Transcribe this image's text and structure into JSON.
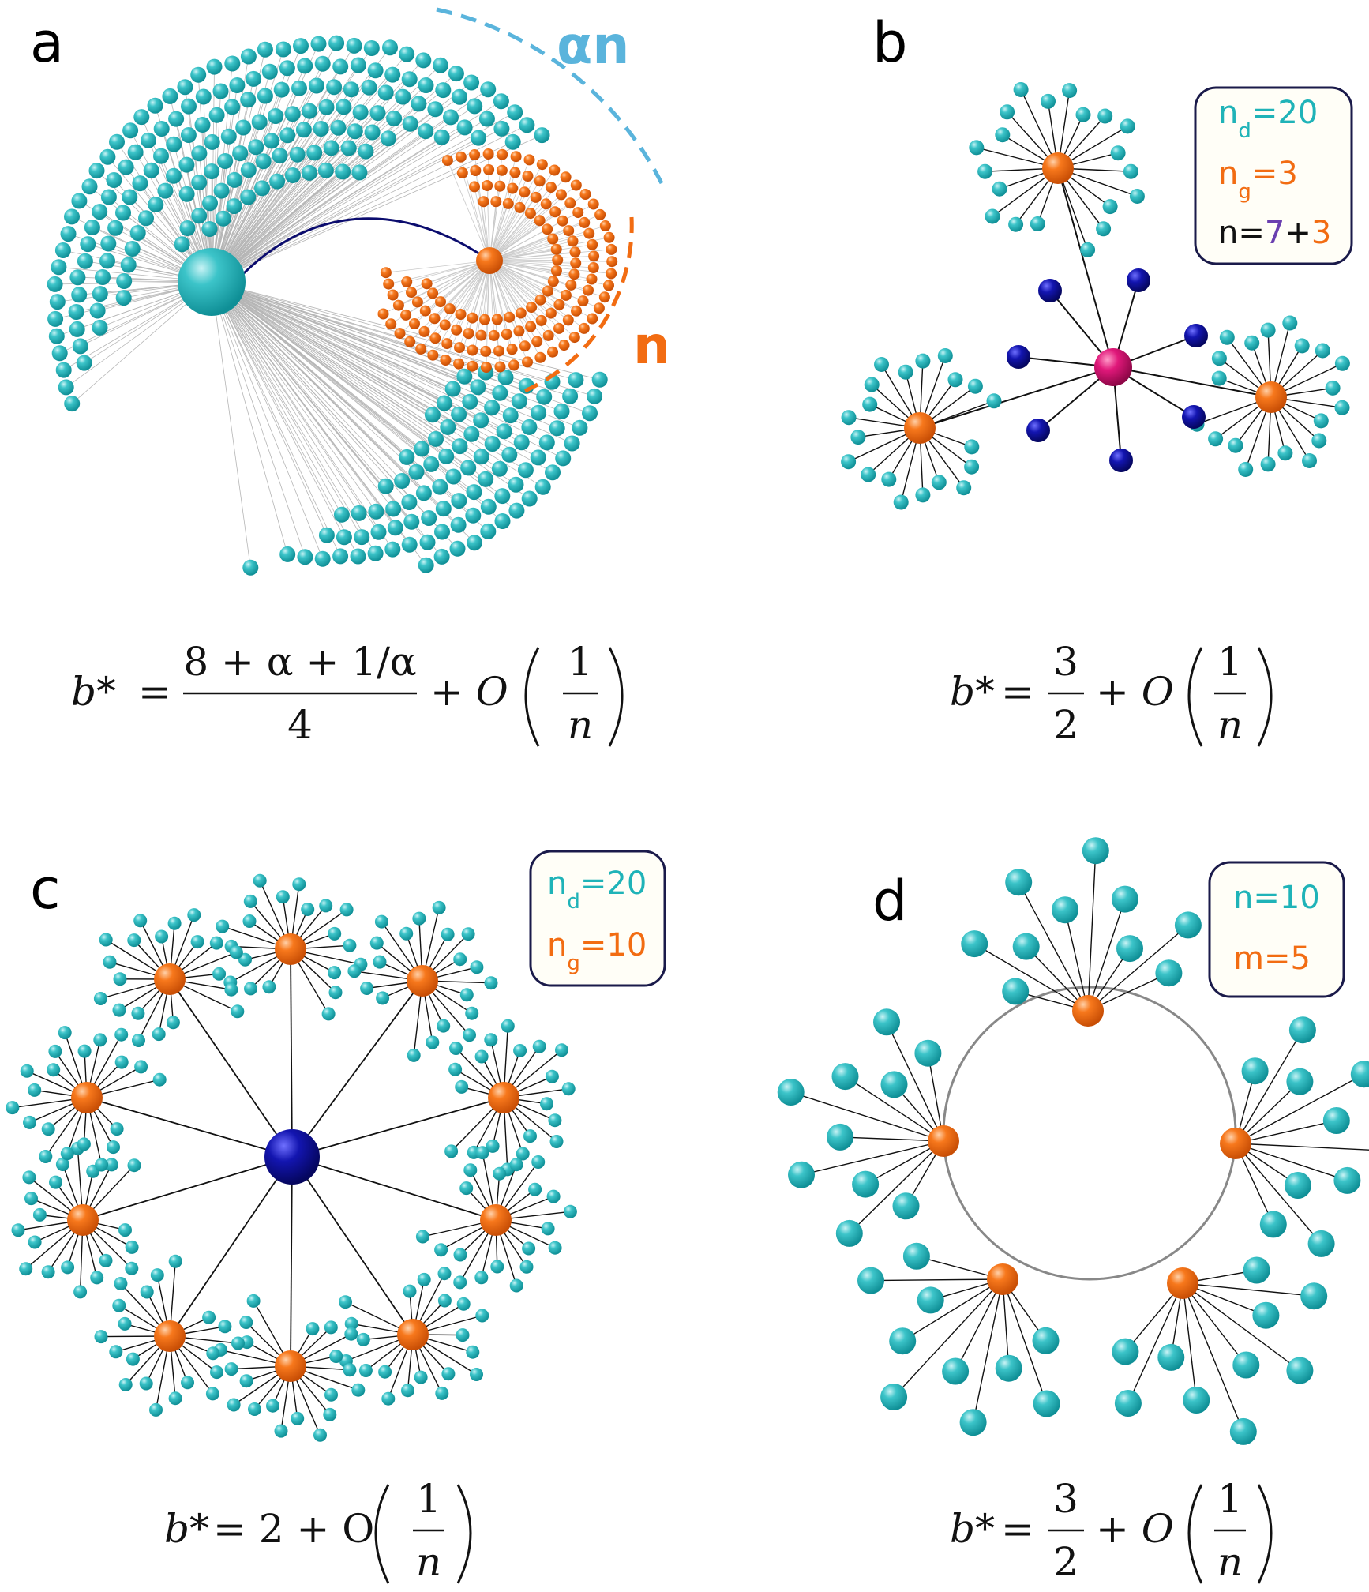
{
  "panels": [
    {
      "id": "a",
      "label": "a",
      "annotations": {
        "outer_ring": "αn",
        "inner_ring": "n"
      },
      "formula": {
        "lhs": "b*",
        "numerator": "8 + α + 1/α",
        "denominator": "4",
        "plus": "+ O",
        "frac_num": "1",
        "frac_den": "n"
      }
    },
    {
      "id": "b",
      "label": "b",
      "legend": [
        {
          "main": "n",
          "sub": "d",
          "value": "=20"
        },
        {
          "main": "n",
          "sub": "g",
          "value": "=3"
        },
        {
          "main": "n=",
          "part1": "7",
          "plus": "+",
          "part2": "3"
        }
      ],
      "formula": {
        "lhs": "b*",
        "numerator": "3",
        "denominator": "2",
        "plus": "+ O",
        "frac_num": "1",
        "frac_den": "n"
      }
    },
    {
      "id": "c",
      "label": "c",
      "legend": [
        {
          "main": "n",
          "sub": "d",
          "value": "=20"
        },
        {
          "main": "n",
          "sub": "g",
          "value": "=10"
        }
      ],
      "formula": {
        "lhs": "b*",
        "rhs": "= 2 + O",
        "frac_num": "1",
        "frac_den": "n"
      }
    },
    {
      "id": "d",
      "label": "d",
      "legend": [
        {
          "text": "n=10"
        },
        {
          "text": "m=5"
        }
      ],
      "formula": {
        "lhs": "b*",
        "numerator": "3",
        "denominator": "2",
        "plus": "+ O",
        "frac_num": "1",
        "frac_den": "n"
      }
    }
  ],
  "colors": {
    "teal": "#1fb3b8",
    "orange": "#f26c12",
    "navy": "#0b0c8c",
    "magenta": "#d4106f",
    "purple": "#6a3fb0",
    "legend_border": "#1a1a4a",
    "legend_bg": "#fffef7",
    "dashed_blue": "#5ab4dc"
  }
}
